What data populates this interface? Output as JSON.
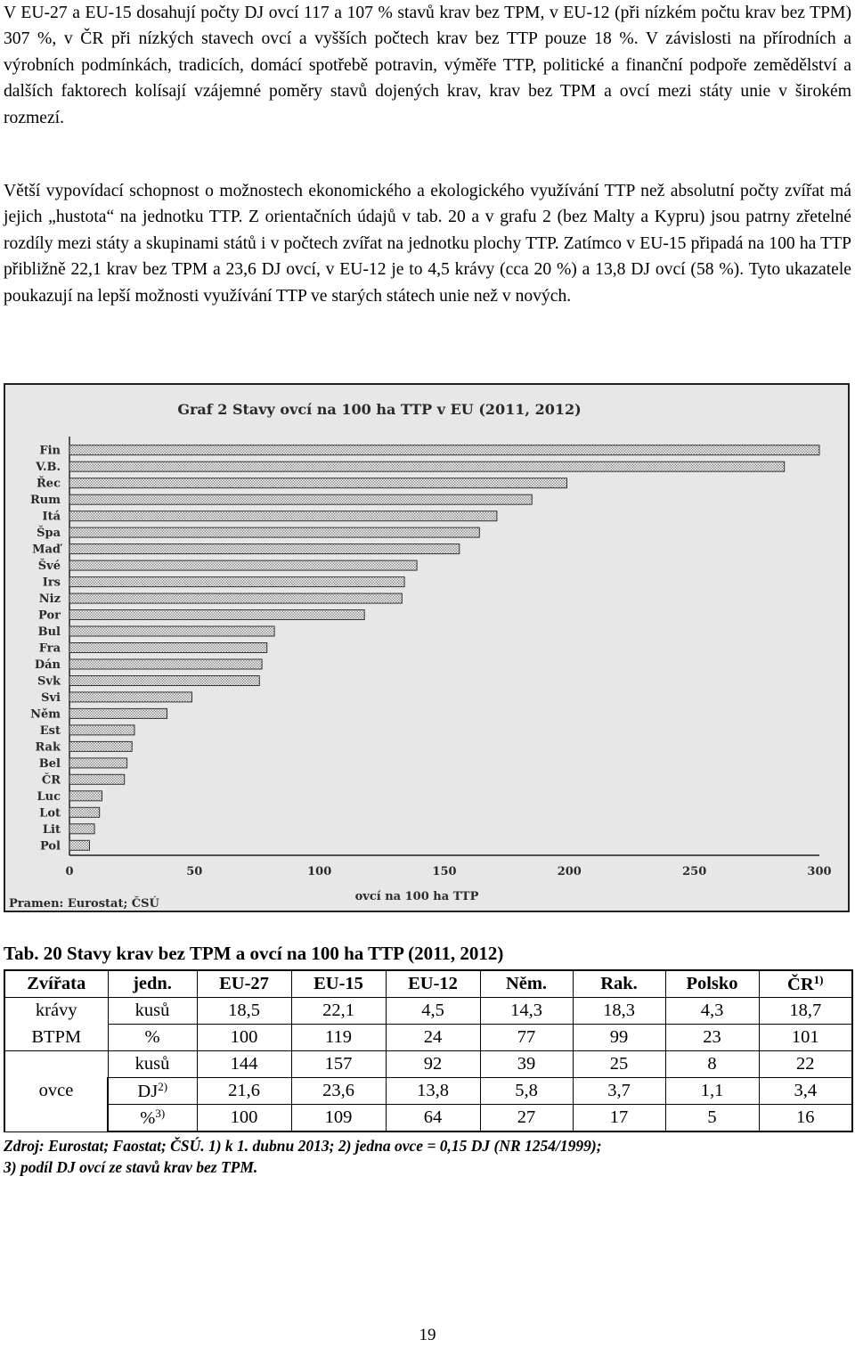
{
  "paragraphs": [
    "V EU-27 a EU-15 dosahují počty DJ ovcí 117 a 107 % stavů krav bez TPM, v EU-12 (při nízkém počtu krav bez TPM) 307 %, v ČR při nízkých stavech ovcí a vyšších počtech krav bez TTP pouze 18 %. V závislosti na přírodních a výrobních podmínkách, tradicích, domácí spotřebě potravin, výměře TTP, politické a finanční podpoře zemědělství a dalších faktorech kolísají vzájemné poměry stavů dojených krav, krav bez TPM a ovcí mezi státy unie v širokém rozmezí.",
    "Větší vypovídací schopnost o možnostech ekonomického a ekologického využívání TTP než absolutní počty zvířat má jejich „hustota“ na jednotku TTP. Z orientačních údajů v tab. 20 a v grafu 2 (bez Malty a Kypru) jsou patrny zřetelné rozdíly mezi státy a skupinami států i v počtech zvířat na jednotku plochy TTP. Zatímco v EU-15 připadá na 100 ha TTP přibližně 22,1 krav bez TPM a 23,6 DJ ovcí, v EU-12 je to 4,5 krávy (cca 20 %) a 13,8 DJ ovcí (58 %). Tyto ukazatele poukazují na lepší možnosti využívání TTP ve starých státech unie než v nových."
  ],
  "chart": {
    "title": "Graf 2 Stavy ovcí na 100 ha TTP v EU (2011, 2012)",
    "xlabel": "ovcí na 100 ha TTP",
    "source": "Pramen: Eurostat; ČSÚ"
  },
  "chart_data": {
    "type": "bar",
    "orientation": "horizontal",
    "title": "Graf 2 Stavy ovcí na 100 ha TTP v EU (2011, 2012)",
    "xlabel": "ovcí na 100 ha TTP",
    "ylabel": "",
    "xlim": [
      0,
      300
    ],
    "xticks": [
      0,
      50,
      100,
      150,
      200,
      250,
      300
    ],
    "grid": false,
    "bar_fill": "dotted grey",
    "categories": [
      "Fin",
      "V.B.",
      "Řec",
      "Rum",
      "Itá",
      "Špa",
      "Maď",
      "Švé",
      "Irs",
      "Niz",
      "Por",
      "Bul",
      "Fra",
      "Dán",
      "Svk",
      "Svi",
      "Něm",
      "Est",
      "Rak",
      "Bel",
      "ČR",
      "Luc",
      "Lot",
      "Lit",
      "Pol"
    ],
    "values": [
      300,
      286,
      199,
      185,
      171,
      164,
      156,
      139,
      134,
      133,
      118,
      82,
      79,
      77,
      76,
      49,
      39,
      26,
      25,
      23,
      22,
      13,
      12,
      10,
      8
    ]
  },
  "table": {
    "caption": "Tab. 20  Stavy krav bez TPM a ovcí na 100 ha TTP (2011, 2012)",
    "headers": [
      "Zvířata",
      "jedn.",
      "EU-27",
      "EU-15",
      "EU-12",
      "Něm.",
      "Rak.",
      "Polsko",
      "ČR"
    ],
    "header_cr_sup": "1)",
    "group_cows_line1": "krávy",
    "group_cows_line2": "BTPM",
    "group_sheep": "ovce",
    "rows": [
      {
        "unit": "kusů",
        "sup": "",
        "values": [
          "18,5",
          "22,1",
          "4,5",
          "14,3",
          "18,3",
          "4,3",
          "18,7"
        ]
      },
      {
        "unit": "%",
        "sup": "",
        "values": [
          "100",
          "119",
          "24",
          "77",
          "99",
          "23",
          "101"
        ]
      },
      {
        "unit": "kusů",
        "sup": "",
        "values": [
          "144",
          "157",
          "92",
          "39",
          "25",
          "8",
          "22"
        ]
      },
      {
        "unit": "DJ",
        "sup": "2)",
        "values": [
          "21,6",
          "23,6",
          "13,8",
          "5,8",
          "3,7",
          "1,1",
          "3,4"
        ]
      },
      {
        "unit": "%",
        "sup": "3)",
        "values": [
          "100",
          "109",
          "64",
          "27",
          "17",
          "5",
          "16"
        ]
      }
    ],
    "source_line1": "Zdroj: Eurostat; Faostat; ČSÚ.  1) k 1. dubnu 2013;  2) jedna ovce = 0,15 DJ (NR 1254/1999);",
    "source_line2": "3) podíl DJ ovcí ze stavů krav bez TPM."
  },
  "page_number": "19"
}
